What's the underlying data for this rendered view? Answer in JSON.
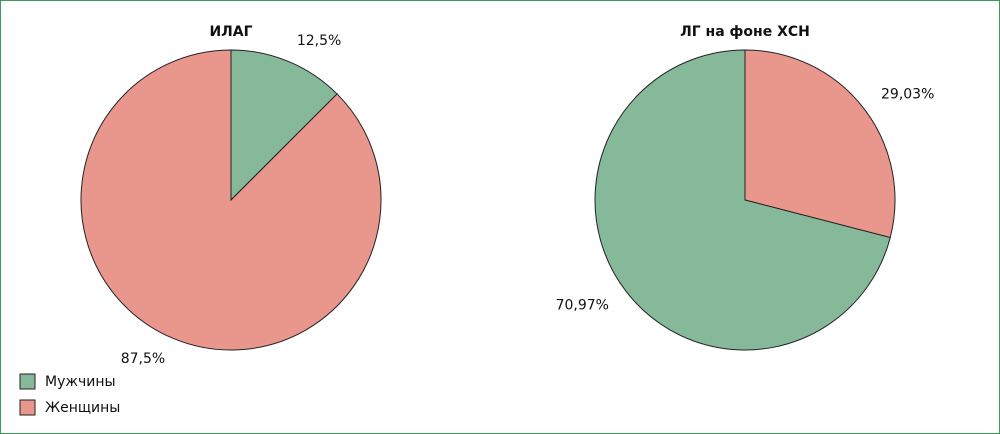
{
  "chart_data": [
    {
      "type": "pie",
      "title": "ИЛАГ",
      "categories": [
        "Мужчины",
        "Женщины"
      ],
      "values": [
        12.5,
        87.5
      ],
      "value_labels": [
        "12,5%",
        "87,5%"
      ],
      "colors": [
        "#86b99a",
        "#e9968c"
      ]
    },
    {
      "type": "pie",
      "title": "ЛГ на фоне ХСН",
      "categories": [
        "Женщины",
        "Мужчины"
      ],
      "values": [
        29.03,
        70.97
      ],
      "value_labels": [
        "29,03%",
        "70,97%"
      ],
      "colors": [
        "#e9968c",
        "#86b99a"
      ]
    }
  ]
}
